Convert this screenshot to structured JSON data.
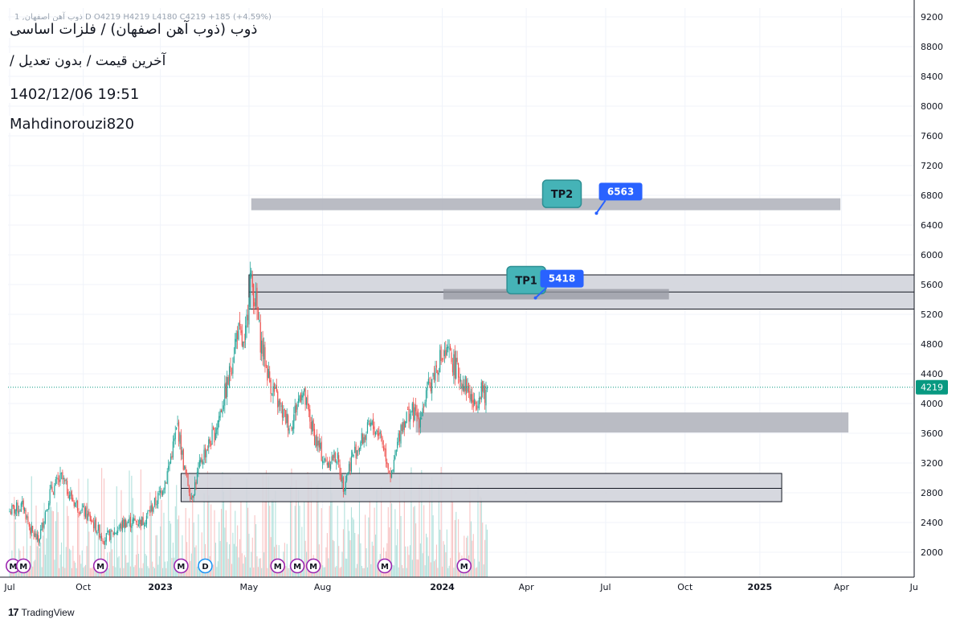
{
  "ticker_line": "ذوب آهن اصفهان, 1 D  O4219 H4219 L4180 C4219 +185 (+4.59%)",
  "info": {
    "title": "ذوب (ذوب آهن اصفهان) / فلزات اساسی",
    "subtitle": "آخرین قیمت / بدون تعدیل /",
    "datetime": "1402/12/06 19:51",
    "author": "Mahdinorouzi820"
  },
  "brand": {
    "logo": "17",
    "name": "TradingView"
  },
  "colors": {
    "up": "#26a69a",
    "down": "#ef5350",
    "zone": "#b2b5be",
    "box": "#d1d4dc",
    "label_blue": "#2962ff",
    "label_teal": "#45b3b7",
    "last_price": "#089981",
    "event_m": "#9c27b0",
    "event_d": "#2196f3"
  },
  "chart_data": {
    "type": "candlestick",
    "y_axis": {
      "ticks": [
        2000,
        2400,
        2800,
        3200,
        3600,
        4000,
        4400,
        4800,
        5200,
        5600,
        6000,
        6400,
        6800,
        7200,
        7600,
        8000,
        8400,
        8800,
        9200
      ],
      "range": [
        1680,
        9300
      ],
      "side": "right"
    },
    "x_axis": {
      "ticks": [
        {
          "label": "Jul",
          "bold": false,
          "index": 0
        },
        {
          "label": "Oct",
          "bold": false,
          "index": 64
        },
        {
          "label": "2023",
          "bold": true,
          "index": 131
        },
        {
          "label": "May",
          "bold": false,
          "index": 208
        },
        {
          "label": "Aug",
          "bold": false,
          "index": 272
        },
        {
          "label": "2024",
          "bold": true,
          "index": 376
        },
        {
          "label": "Apr",
          "bold": false,
          "index": 449
        },
        {
          "label": "Jul",
          "bold": false,
          "index": 518
        },
        {
          "label": "Oct",
          "bold": false,
          "index": 587
        },
        {
          "label": "2025",
          "bold": true,
          "index": 652
        },
        {
          "label": "Apr",
          "bold": false,
          "index": 723
        },
        {
          "label": "Ju",
          "bold": false,
          "index": 786
        }
      ],
      "last_bar_index": 415
    },
    "anchors": [
      {
        "index": 0,
        "close": 2550
      },
      {
        "index": 12,
        "close": 2620
      },
      {
        "index": 18,
        "close": 2300
      },
      {
        "index": 25,
        "close": 2150
      },
      {
        "index": 35,
        "close": 2800
      },
      {
        "index": 45,
        "close": 3000
      },
      {
        "index": 55,
        "close": 2700
      },
      {
        "index": 70,
        "close": 2450
      },
      {
        "index": 82,
        "close": 2180
      },
      {
        "index": 92,
        "close": 2280
      },
      {
        "index": 100,
        "close": 2400
      },
      {
        "index": 116,
        "close": 2420
      },
      {
        "index": 128,
        "close": 2700
      },
      {
        "index": 136,
        "close": 3000
      },
      {
        "index": 146,
        "close": 3700
      },
      {
        "index": 152,
        "close": 3100
      },
      {
        "index": 158,
        "close": 2750
      },
      {
        "index": 168,
        "close": 3300
      },
      {
        "index": 178,
        "close": 3600
      },
      {
        "index": 190,
        "close": 4300
      },
      {
        "index": 198,
        "close": 5000
      },
      {
        "index": 204,
        "close": 4700
      },
      {
        "index": 209,
        "close": 5700
      },
      {
        "index": 214,
        "close": 5350
      },
      {
        "index": 218,
        "close": 4850
      },
      {
        "index": 226,
        "close": 4300
      },
      {
        "index": 236,
        "close": 3900
      },
      {
        "index": 244,
        "close": 3700
      },
      {
        "index": 254,
        "close": 4200
      },
      {
        "index": 264,
        "close": 3600
      },
      {
        "index": 274,
        "close": 3200
      },
      {
        "index": 284,
        "close": 3300
      },
      {
        "index": 290,
        "close": 2900
      },
      {
        "index": 298,
        "close": 3300
      },
      {
        "index": 306,
        "close": 3500
      },
      {
        "index": 314,
        "close": 3700
      },
      {
        "index": 322,
        "close": 3600
      },
      {
        "index": 332,
        "close": 3000
      },
      {
        "index": 340,
        "close": 3700
      },
      {
        "index": 348,
        "close": 3900
      },
      {
        "index": 356,
        "close": 3800
      },
      {
        "index": 366,
        "close": 4300
      },
      {
        "index": 374,
        "close": 4600
      },
      {
        "index": 382,
        "close": 4650
      },
      {
        "index": 390,
        "close": 4400
      },
      {
        "index": 398,
        "close": 4200
      },
      {
        "index": 404,
        "close": 3950
      },
      {
        "index": 410,
        "close": 4250
      },
      {
        "index": 413,
        "close": 4034
      },
      {
        "index": 415,
        "close": 4219
      }
    ],
    "last_price": 4219,
    "zones": [
      {
        "name": "zone-6600",
        "from_index": 210,
        "to_index": 722,
        "low": 6600,
        "high": 6760,
        "style": "filled"
      },
      {
        "name": "zone-5300-5750",
        "from_index": 208,
        "to_index": 792,
        "low": 5270,
        "high": 5730,
        "style": "boxed",
        "midline": 5500
      },
      {
        "name": "zone-5450",
        "from_index": 377,
        "to_index": 573,
        "low": 5400,
        "high": 5540,
        "style": "filled-dark"
      },
      {
        "name": "zone-3800",
        "from_index": 353,
        "to_index": 729,
        "low": 3610,
        "high": 3880,
        "style": "filled"
      },
      {
        "name": "zone-2800",
        "from_index": 149,
        "to_index": 671,
        "low": 2680,
        "high": 3060,
        "style": "boxed",
        "midline": 2860
      }
    ],
    "labels": [
      {
        "text": "TP2",
        "kind": "teal",
        "index": 480,
        "price": 6820
      },
      {
        "text": "6563",
        "kind": "blue",
        "index": 531,
        "price": 6850,
        "pointer_index": 510,
        "pointer_price": 6560
      },
      {
        "text": "TP1",
        "kind": "teal",
        "index": 449,
        "price": 5660
      },
      {
        "text": "5418",
        "kind": "blue",
        "index": 480,
        "price": 5680,
        "pointer_index": 457,
        "pointer_price": 5420
      }
    ],
    "events": [
      {
        "label": "M",
        "kind": "M",
        "index": 3
      },
      {
        "label": "M",
        "kind": "M",
        "index": 12
      },
      {
        "label": "M",
        "kind": "M",
        "index": 79
      },
      {
        "label": "M",
        "kind": "M",
        "index": 149
      },
      {
        "label": "D",
        "kind": "D",
        "index": 170
      },
      {
        "label": "M",
        "kind": "M",
        "index": 233
      },
      {
        "label": "M",
        "kind": "M",
        "index": 250
      },
      {
        "label": "M",
        "kind": "M",
        "index": 264
      },
      {
        "label": "M",
        "kind": "M",
        "index": 326
      },
      {
        "label": "M",
        "kind": "M",
        "index": 395
      }
    ]
  }
}
